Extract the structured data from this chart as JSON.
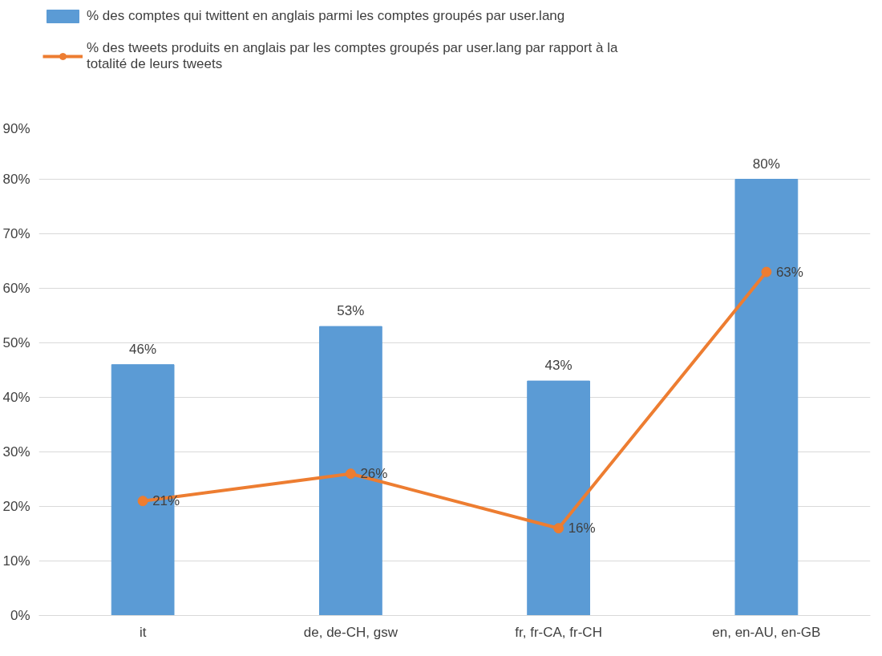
{
  "chart_data": {
    "type": "bar",
    "categories": [
      "it",
      "de, de-CH, gsw",
      "fr, fr-CA, fr-CH",
      "en, en-AU, en-GB"
    ],
    "series": [
      {
        "name": "% des comptes qui twittent en anglais parmi les comptes groupés par user.lang",
        "color": "#5b9bd5",
        "values": [
          46,
          53,
          43,
          80
        ],
        "value_labels": [
          "46%",
          "53%",
          "43%",
          "80%"
        ]
      },
      {
        "name": "% des tweets produits en anglais par les comptes groupés par user.lang par rapport à la totalité de leurs tweets",
        "type": "line",
        "color": "#ed7d31",
        "marker": "circle",
        "values": [
          21,
          26,
          16,
          63
        ],
        "value_labels": [
          "21%",
          "26%",
          "16%",
          "63%"
        ]
      }
    ],
    "ylim": [
      0,
      90
    ],
    "yticks": [
      {
        "value": 0,
        "label": "0%"
      },
      {
        "value": 10,
        "label": "10%"
      },
      {
        "value": 20,
        "label": "20%"
      },
      {
        "value": 30,
        "label": "30%"
      },
      {
        "value": 40,
        "label": "40%"
      },
      {
        "value": 50,
        "label": "50%"
      },
      {
        "value": 60,
        "label": "60%"
      },
      {
        "value": 70,
        "label": "70%"
      },
      {
        "value": 80,
        "label": "80%"
      },
      {
        "value": 90,
        "label": "90%"
      }
    ],
    "grid": "y",
    "legend": "top"
  }
}
